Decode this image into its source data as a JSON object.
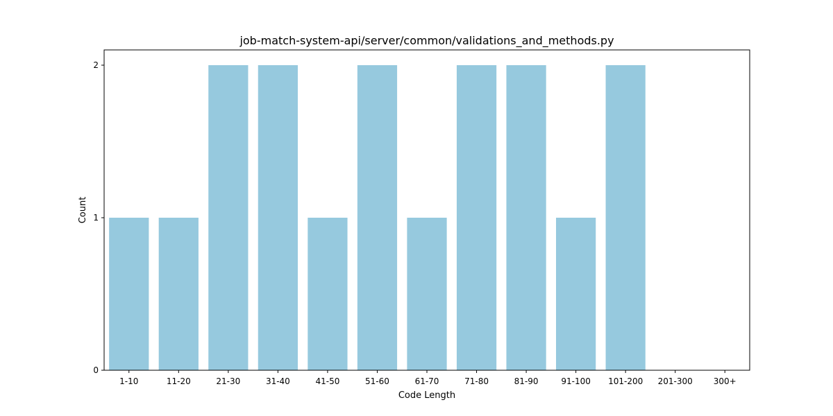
{
  "chart_data": {
    "type": "bar",
    "title": "job-match-system-api/server/common/validations_and_methods.py",
    "xlabel": "Code Length",
    "ylabel": "Count",
    "categories": [
      "1-10",
      "11-20",
      "21-30",
      "31-40",
      "41-50",
      "51-60",
      "61-70",
      "71-80",
      "81-90",
      "91-100",
      "101-200",
      "201-300",
      "300+"
    ],
    "values": [
      1,
      1,
      2,
      2,
      1,
      2,
      1,
      2,
      2,
      1,
      2,
      0,
      0
    ],
    "ylim": [
      0,
      2.1
    ],
    "yticks": [
      0,
      1,
      2
    ],
    "grid": false,
    "bar_color": "#96c9de"
  }
}
